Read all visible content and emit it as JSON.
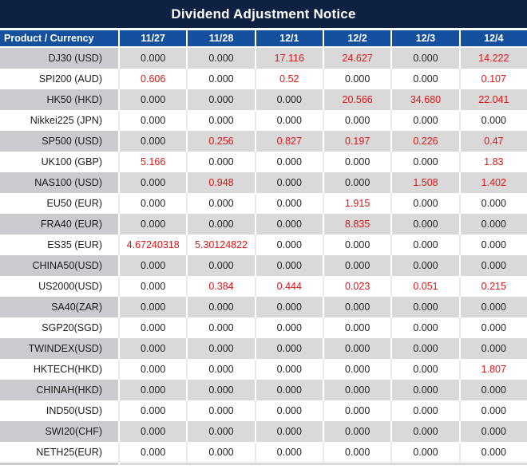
{
  "title": "Dividend Adjustment Notice",
  "colors": {
    "title_bg": "#0e2142",
    "header_bg": "#14509e",
    "row_grey": "#d9d9d9",
    "row_grey_product": "#c9cbd1",
    "sep_white_row": "#eaeaea",
    "red": "#e51313",
    "ink": "#222222"
  },
  "table": {
    "product_header": "Product / Currency",
    "date_headers": [
      "11/27",
      "11/28",
      "12/1",
      "12/2",
      "12/3",
      "12/4"
    ],
    "rows": [
      {
        "product": "DJ30 (USD)",
        "values": [
          "0.000",
          "0.000",
          "17.116",
          "24.627",
          "0.000",
          "14.222"
        ],
        "red": [
          false,
          false,
          true,
          true,
          false,
          true
        ]
      },
      {
        "product": "SPI200 (AUD)",
        "values": [
          "0.606",
          "0.000",
          "0.52",
          "0.000",
          "0.000",
          "0.107"
        ],
        "red": [
          true,
          false,
          true,
          false,
          false,
          true
        ]
      },
      {
        "product": "HK50 (HKD)",
        "values": [
          "0.000",
          "0.000",
          "0.000",
          "20.566",
          "34.680",
          "22.041"
        ],
        "red": [
          false,
          false,
          false,
          true,
          true,
          true
        ]
      },
      {
        "product": "Nikkei225 (JPN)",
        "values": [
          "0.000",
          "0.000",
          "0.000",
          "0.000",
          "0.000",
          "0.000"
        ],
        "red": [
          false,
          false,
          false,
          false,
          false,
          false
        ]
      },
      {
        "product": "SP500 (USD)",
        "values": [
          "0.000",
          "0.256",
          "0.827",
          "0.197",
          "0.226",
          "0.47"
        ],
        "red": [
          false,
          true,
          true,
          true,
          true,
          true
        ]
      },
      {
        "product": "UK100 (GBP)",
        "values": [
          "5.166",
          "0.000",
          "0.000",
          "0.000",
          "0.000",
          "1.83"
        ],
        "red": [
          true,
          false,
          false,
          false,
          false,
          true
        ]
      },
      {
        "product": "NAS100 (USD)",
        "values": [
          "0.000",
          "0.948",
          "0.000",
          "0.000",
          "1.508",
          "1.402"
        ],
        "red": [
          false,
          true,
          false,
          false,
          true,
          true
        ]
      },
      {
        "product": "EU50 (EUR)",
        "values": [
          "0.000",
          "0.000",
          "0.000",
          "1.915",
          "0.000",
          "0.000"
        ],
        "red": [
          false,
          false,
          false,
          true,
          false,
          false
        ]
      },
      {
        "product": "FRA40 (EUR)",
        "values": [
          "0.000",
          "0.000",
          "0.000",
          "8.835",
          "0.000",
          "0.000"
        ],
        "red": [
          false,
          false,
          false,
          true,
          false,
          false
        ]
      },
      {
        "product": "ES35 (EUR)",
        "values": [
          "4.67240318",
          "5.30124822",
          "0.000",
          "0.000",
          "0.000",
          "0.000"
        ],
        "red": [
          true,
          true,
          false,
          false,
          false,
          false
        ]
      },
      {
        "product": "CHINA50(USD)",
        "values": [
          "0.000",
          "0.000",
          "0.000",
          "0.000",
          "0.000",
          "0.000"
        ],
        "red": [
          false,
          false,
          false,
          false,
          false,
          false
        ]
      },
      {
        "product": "US2000(USD)",
        "values": [
          "0.000",
          "0.384",
          "0.444",
          "0.023",
          "0.051",
          "0.215"
        ],
        "red": [
          false,
          true,
          true,
          true,
          true,
          true
        ]
      },
      {
        "product": "SA40(ZAR)",
        "values": [
          "0.000",
          "0.000",
          "0.000",
          "0.000",
          "0.000",
          "0.000"
        ],
        "red": [
          false,
          false,
          false,
          false,
          false,
          false
        ]
      },
      {
        "product": "SGP20(SGD)",
        "values": [
          "0.000",
          "0.000",
          "0.000",
          "0.000",
          "0.000",
          "0.000"
        ],
        "red": [
          false,
          false,
          false,
          false,
          false,
          false
        ]
      },
      {
        "product": "TWINDEX(USD)",
        "values": [
          "0.000",
          "0.000",
          "0.000",
          "0.000",
          "0.000",
          "0.000"
        ],
        "red": [
          false,
          false,
          false,
          false,
          false,
          false
        ]
      },
      {
        "product": "HKTECH(HKD)",
        "values": [
          "0.000",
          "0.000",
          "0.000",
          "0.000",
          "0.000",
          "1.807"
        ],
        "red": [
          false,
          false,
          false,
          false,
          false,
          true
        ]
      },
      {
        "product": "CHINAH(HKD)",
        "values": [
          "0.000",
          "0.000",
          "0.000",
          "0.000",
          "0.000",
          "0.000"
        ],
        "red": [
          false,
          false,
          false,
          false,
          false,
          false
        ]
      },
      {
        "product": "IND50(USD)",
        "values": [
          "0.000",
          "0.000",
          "0.000",
          "0.000",
          "0.000",
          "0.000"
        ],
        "red": [
          false,
          false,
          false,
          false,
          false,
          false
        ]
      },
      {
        "product": "SWI20(CHF)",
        "values": [
          "0.000",
          "0.000",
          "0.000",
          "0.000",
          "0.000",
          "0.000"
        ],
        "red": [
          false,
          false,
          false,
          false,
          false,
          false
        ]
      },
      {
        "product": "NETH25(EUR)",
        "values": [
          "0.000",
          "0.000",
          "0.000",
          "0.000",
          "0.000",
          "0.000"
        ],
        "red": [
          false,
          false,
          false,
          false,
          false,
          false
        ]
      }
    ]
  }
}
